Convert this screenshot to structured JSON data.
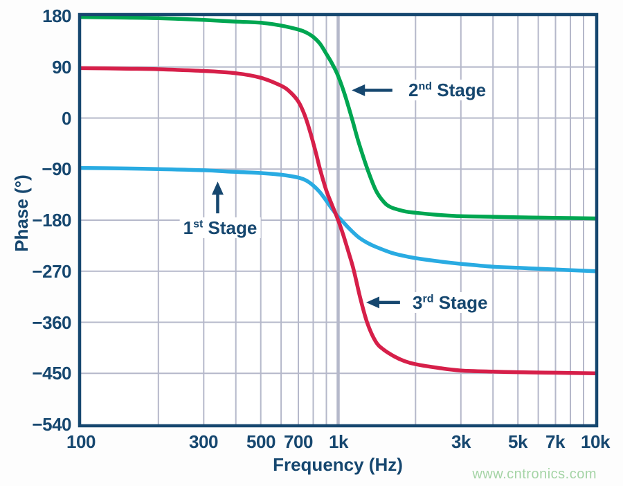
{
  "watermark": "www.cntronics.com",
  "colors": {
    "navy": "#16476F",
    "grid": "#B5B8CA",
    "plot_background": "#FFFFFF",
    "green": "#00A651",
    "red": "#D61F49",
    "cyan": "#29ABE2",
    "watermark_green": "#A5D4A6"
  },
  "chart_data": {
    "type": "line",
    "title": "",
    "xlabel": "Frequency (Hz)",
    "ylabel": "Phase (°)",
    "x_axis": {
      "label": "Frequency (Hz)",
      "scale": "log",
      "min": 100,
      "max": 10000,
      "ticks": [
        {
          "value": 100,
          "label": "100"
        },
        {
          "value": 300,
          "label": "300"
        },
        {
          "value": 500,
          "label": "500"
        },
        {
          "value": 700,
          "label": "700"
        },
        {
          "value": 1000,
          "label": "1k"
        },
        {
          "value": 3000,
          "label": "3k"
        },
        {
          "value": 5000,
          "label": "5k"
        },
        {
          "value": 7000,
          "label": "7k"
        },
        {
          "value": 10000,
          "label": "10k"
        }
      ],
      "gridlines": [
        200,
        300,
        400,
        500,
        600,
        700,
        800,
        900,
        1000,
        2000,
        3000,
        4000,
        5000,
        6000,
        7000,
        8000,
        9000
      ],
      "emphasized_gridline": 1000
    },
    "y_axis": {
      "label": "Phase (°)",
      "min": -540,
      "max": 180,
      "tick_step": 90,
      "ticks": [
        {
          "value": 180,
          "label": "180"
        },
        {
          "value": 90,
          "label": "90"
        },
        {
          "value": 0,
          "label": "0"
        },
        {
          "value": -90,
          "label": "−90"
        },
        {
          "value": -180,
          "label": "−180"
        },
        {
          "value": -270,
          "label": "−270"
        },
        {
          "value": -360,
          "label": "−360"
        },
        {
          "value": -450,
          "label": "−450"
        },
        {
          "value": -540,
          "label": "−540"
        }
      ]
    },
    "grid": true,
    "legend": "none",
    "series": [
      {
        "name": "1st Stage",
        "color": "#29ABE2",
        "points": [
          [
            100,
            -88
          ],
          [
            150,
            -89
          ],
          [
            200,
            -90
          ],
          [
            300,
            -92
          ],
          [
            400,
            -95
          ],
          [
            500,
            -97
          ],
          [
            600,
            -100
          ],
          [
            700,
            -105
          ],
          [
            750,
            -110
          ],
          [
            800,
            -119
          ],
          [
            850,
            -131
          ],
          [
            900,
            -146
          ],
          [
            950,
            -161
          ],
          [
            1000,
            -174
          ],
          [
            1030,
            -180
          ],
          [
            1100,
            -194
          ],
          [
            1200,
            -210
          ],
          [
            1300,
            -220
          ],
          [
            1400,
            -227
          ],
          [
            1600,
            -237
          ],
          [
            1800,
            -243
          ],
          [
            2000,
            -247
          ],
          [
            2500,
            -253
          ],
          [
            3000,
            -257
          ],
          [
            4000,
            -262
          ],
          [
            5000,
            -264
          ],
          [
            7000,
            -267
          ],
          [
            10000,
            -270
          ]
        ]
      },
      {
        "name": "2nd Stage",
        "color": "#00A651",
        "points": [
          [
            100,
            178
          ],
          [
            150,
            177
          ],
          [
            200,
            176
          ],
          [
            300,
            173
          ],
          [
            400,
            170
          ],
          [
            500,
            168
          ],
          [
            600,
            163
          ],
          [
            700,
            156
          ],
          [
            750,
            151
          ],
          [
            800,
            143
          ],
          [
            850,
            131
          ],
          [
            900,
            113
          ],
          [
            950,
            95
          ],
          [
            1000,
            74
          ],
          [
            1060,
            42
          ],
          [
            1130,
            0
          ],
          [
            1200,
            -42
          ],
          [
            1300,
            -90
          ],
          [
            1400,
            -127
          ],
          [
            1500,
            -147
          ],
          [
            1600,
            -157
          ],
          [
            1800,
            -164
          ],
          [
            2000,
            -167
          ],
          [
            2500,
            -171
          ],
          [
            3000,
            -173
          ],
          [
            4000,
            -174
          ],
          [
            5000,
            -175
          ],
          [
            7000,
            -176
          ],
          [
            10000,
            -177
          ]
        ]
      },
      {
        "name": "3rd Stage",
        "color": "#D61F49",
        "points": [
          [
            100,
            88
          ],
          [
            150,
            87
          ],
          [
            200,
            86
          ],
          [
            300,
            83
          ],
          [
            400,
            79
          ],
          [
            500,
            71
          ],
          [
            600,
            57
          ],
          [
            650,
            46
          ],
          [
            700,
            29
          ],
          [
            740,
            6
          ],
          [
            780,
            -26
          ],
          [
            820,
            -62
          ],
          [
            850,
            -90
          ],
          [
            900,
            -128
          ],
          [
            950,
            -155
          ],
          [
            1000,
            -180
          ],
          [
            1050,
            -208
          ],
          [
            1100,
            -238
          ],
          [
            1150,
            -268
          ],
          [
            1220,
            -318
          ],
          [
            1300,
            -362
          ],
          [
            1400,
            -394
          ],
          [
            1500,
            -408
          ],
          [
            1650,
            -420
          ],
          [
            1800,
            -428
          ],
          [
            2000,
            -434
          ],
          [
            2500,
            -441
          ],
          [
            3000,
            -445
          ],
          [
            4000,
            -447
          ],
          [
            5000,
            -448
          ],
          [
            7000,
            -449
          ],
          [
            10000,
            -450
          ]
        ]
      }
    ],
    "annotations": [
      {
        "num": "2",
        "sup": "nd",
        "rest": " Stage",
        "dir": "left",
        "align": "left",
        "tip": {
          "f": 1130,
          "phase": 49
        },
        "tail": {
          "f": 1625,
          "phase": 49
        },
        "text_anchor": {
          "f": 1815,
          "phase": 49
        }
      },
      {
        "num": "1",
        "sup": "st",
        "rest": " Stage",
        "dir": "up",
        "align": "center",
        "tip": {
          "f": 340,
          "phase": -112
        },
        "tail": {
          "f": 340,
          "phase": -168
        },
        "text_anchor": {
          "f": 348,
          "phase": -193
        }
      },
      {
        "num": "3",
        "sup": "rd",
        "rest": " Stage",
        "dir": "left",
        "align": "left",
        "tip": {
          "f": 1285,
          "phase": -325
        },
        "tail": {
          "f": 1740,
          "phase": -325
        },
        "text_anchor": {
          "f": 1890,
          "phase": -325
        }
      }
    ]
  }
}
